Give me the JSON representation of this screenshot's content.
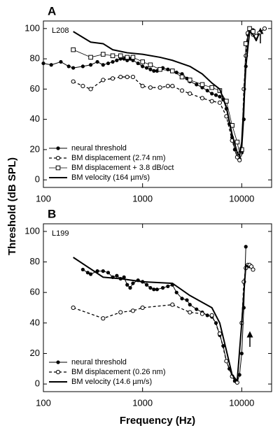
{
  "chart_data": [
    {
      "type": "line",
      "title": "A",
      "annotations": [
        "L208"
      ],
      "ylabel": "Threshold (dB SPL)",
      "xscale": "log",
      "xlim": [
        100,
        20000
      ],
      "xticks": [
        100,
        1000,
        10000
      ],
      "ylim": [
        -5,
        105
      ],
      "yticks": [
        0,
        20,
        40,
        60,
        80,
        100
      ],
      "legend": "lower left",
      "series": [
        {
          "name": "neural threshold",
          "color": "#000000",
          "marker": "filled-circle",
          "dash": false,
          "width": 1,
          "x": [
            100,
            120,
            150,
            180,
            200,
            250,
            300,
            350,
            400,
            450,
            500,
            550,
            600,
            650,
            700,
            750,
            800,
            900,
            1000,
            1100,
            1200,
            1300,
            1400,
            1600,
            1800,
            2000,
            2200,
            2500,
            2800,
            3000,
            3500,
            4000,
            4500,
            5000,
            5500,
            6000,
            6500,
            7000,
            7500,
            8000,
            8500,
            9000,
            9500,
            10000,
            10500,
            11000,
            11500,
            12000,
            12500,
            13000
          ],
          "values": [
            77,
            76,
            78,
            75,
            74,
            75,
            76,
            78,
            76,
            77,
            78,
            79,
            80,
            80,
            79,
            80,
            79,
            77,
            75,
            74,
            73,
            72,
            72,
            74,
            73,
            72,
            71,
            70,
            67,
            65,
            63,
            61,
            59,
            57,
            56,
            55,
            53,
            47,
            37,
            28,
            20,
            15,
            14,
            18,
            40,
            75,
            96,
            99,
            98,
            99
          ]
        },
        {
          "name": "BM displacement (2.74 nm)",
          "color": "#000000",
          "marker": "open-circle",
          "dash": true,
          "width": 1.3,
          "x": [
            200,
            250,
            300,
            400,
            500,
            600,
            700,
            800,
            1000,
            1200,
            1500,
            1800,
            2000,
            2500,
            3000,
            4000,
            5000,
            6000,
            7000,
            8000,
            9000,
            9500,
            10000,
            10500,
            11000,
            11500,
            12500,
            13000,
            14000,
            15000,
            17000
          ],
          "values": [
            65,
            62,
            60,
            66,
            67,
            68,
            68,
            68,
            62,
            61,
            61,
            62,
            62,
            59,
            57,
            54,
            52,
            51,
            42,
            26,
            15,
            13,
            20,
            60,
            82,
            97,
            99,
            96,
            95,
            97,
            100
          ]
        },
        {
          "name": "BM displacement + 3.8 dB/oct",
          "color": "#000000",
          "marker": "open-square",
          "dash": false,
          "width": 0.8,
          "x": [
            200,
            300,
            400,
            500,
            600,
            700,
            800,
            1000,
            1200,
            1500,
            2000,
            2500,
            3000,
            4000,
            5000,
            6000,
            7000,
            8000,
            9000,
            9500,
            10000,
            11000,
            12000,
            13000
          ],
          "values": [
            86,
            81,
            83,
            82,
            82,
            81,
            81,
            78,
            76,
            73,
            72,
            68,
            66,
            63,
            61,
            59,
            52,
            36,
            25,
            17,
            20,
            90,
            100,
            98
          ]
        },
        {
          "name": "BM velocity (164 µm/s)",
          "color": "#000000",
          "marker": "none",
          "dash": false,
          "width": 2,
          "x": [
            200,
            300,
            400,
            500,
            700,
            1000,
            1500,
            2000,
            3000,
            4000,
            5000,
            6000,
            7000,
            8000,
            9000,
            9500,
            10000,
            11000,
            12000,
            13000,
            14000,
            15000
          ],
          "values": [
            98,
            91,
            90,
            86,
            84,
            83,
            81,
            79,
            75,
            70,
            64,
            60,
            48,
            30,
            18,
            16,
            25,
            75,
            98,
            96,
            92,
            97
          ]
        }
      ]
    },
    {
      "type": "line",
      "title": "B",
      "annotations": [
        "L199"
      ],
      "xlabel": "Frequency (Hz)",
      "xscale": "log",
      "xlim": [
        100,
        20000
      ],
      "xticks": [
        100,
        1000,
        10000
      ],
      "ylim": [
        -5,
        105
      ],
      "yticks": [
        0,
        20,
        40,
        60,
        80,
        100
      ],
      "legend": "lower left",
      "series": [
        {
          "name": "neural threshold",
          "color": "#000000",
          "marker": "filled-circle",
          "dash": false,
          "width": 1,
          "x": [
            250,
            280,
            300,
            350,
            400,
            450,
            500,
            550,
            600,
            650,
            700,
            750,
            800,
            900,
            1000,
            1100,
            1200,
            1300,
            1400,
            1600,
            1800,
            2000,
            2200,
            2500,
            2800,
            3000,
            3500,
            4000,
            4500,
            5000,
            5500,
            6000,
            6500,
            7000,
            7500,
            8000,
            8500,
            9000,
            9500,
            10000,
            10500,
            11000
          ],
          "values": [
            75,
            73,
            72,
            74,
            74,
            73,
            70,
            71,
            69,
            70,
            65,
            63,
            66,
            68,
            67,
            65,
            63,
            62,
            62,
            63,
            64,
            65,
            60,
            56,
            55,
            52,
            49,
            47,
            45,
            44,
            40,
            32,
            25,
            15,
            10,
            5,
            2,
            1,
            6,
            20,
            50,
            90
          ]
        },
        {
          "name": "BM displacement (0.26 nm)",
          "color": "#000000",
          "marker": "open-circle",
          "dash": true,
          "width": 1.3,
          "x": [
            200,
            400,
            600,
            800,
            1000,
            2000,
            3000,
            4000,
            5000,
            6000,
            7000,
            8000,
            9000,
            10000,
            10500,
            11000,
            11500,
            12000,
            12500,
            13000
          ],
          "values": [
            50,
            43,
            47,
            48,
            50,
            52,
            47,
            46,
            45,
            33,
            15,
            5,
            1,
            40,
            67,
            76,
            78,
            78,
            77,
            75
          ]
        },
        {
          "name": "BM velocity (14.6 µm/s)",
          "color": "#000000",
          "marker": "none",
          "dash": false,
          "width": 2,
          "x": [
            200,
            400,
            600,
            1000,
            2000,
            3000,
            5000,
            6000,
            7000,
            8000,
            9000,
            10000,
            11000,
            12000
          ],
          "values": [
            83,
            70,
            69,
            67,
            66,
            58,
            50,
            40,
            22,
            6,
            2,
            40,
            78,
            76
          ]
        }
      ]
    }
  ]
}
